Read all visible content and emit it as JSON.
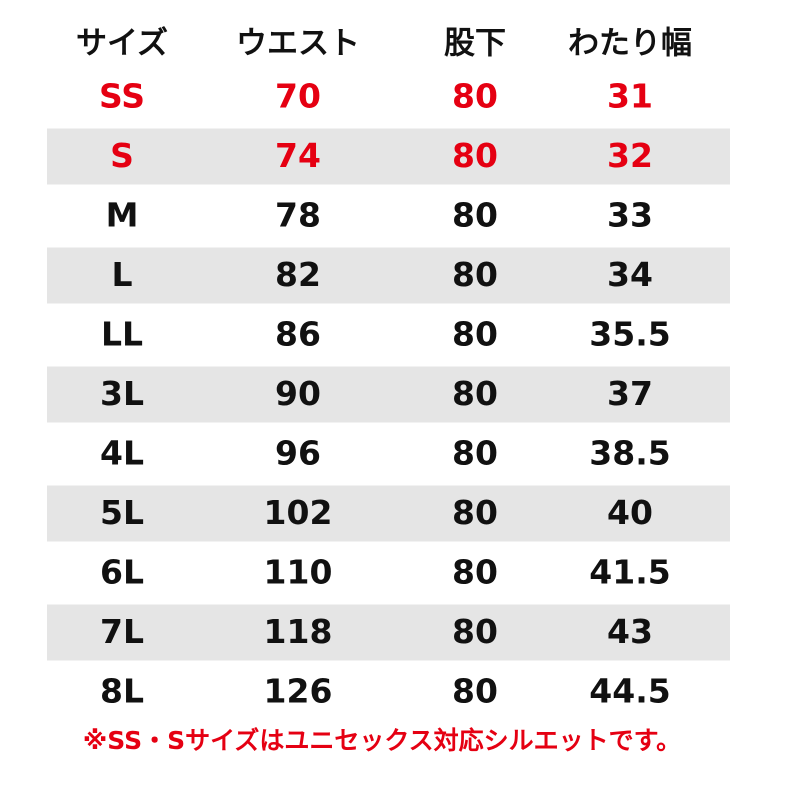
{
  "table": {
    "header": [
      "サイズ",
      "ウエスト",
      "股下",
      "わたり幅"
    ],
    "rows": [
      {
        "cells": [
          "SS",
          "70",
          "80",
          "31"
        ],
        "color": "#e50012"
      },
      {
        "cells": [
          "S",
          "74",
          "80",
          "32"
        ],
        "color": "#e50012"
      },
      {
        "cells": [
          "M",
          "78",
          "80",
          "33"
        ],
        "color": "#111111"
      },
      {
        "cells": [
          "L",
          "82",
          "80",
          "34"
        ],
        "color": "#111111"
      },
      {
        "cells": [
          "LL",
          "86",
          "80",
          "35.5"
        ],
        "color": "#111111"
      },
      {
        "cells": [
          "3L",
          "90",
          "80",
          "37"
        ],
        "color": "#111111"
      },
      {
        "cells": [
          "4L",
          "96",
          "80",
          "38.5"
        ],
        "color": "#111111"
      },
      {
        "cells": [
          "5L",
          "102",
          "80",
          "40"
        ],
        "color": "#111111"
      },
      {
        "cells": [
          "6L",
          "110",
          "80",
          "41.5"
        ],
        "color": "#111111"
      },
      {
        "cells": [
          "7L",
          "118",
          "80",
          "43"
        ],
        "color": "#111111"
      },
      {
        "cells": [
          "8L",
          "126",
          "80",
          "44.5"
        ],
        "color": "#111111"
      }
    ]
  },
  "note": {
    "text": "※SS・Sサイズはユニセックス対応シルエットです。",
    "color": "#e50012"
  }
}
